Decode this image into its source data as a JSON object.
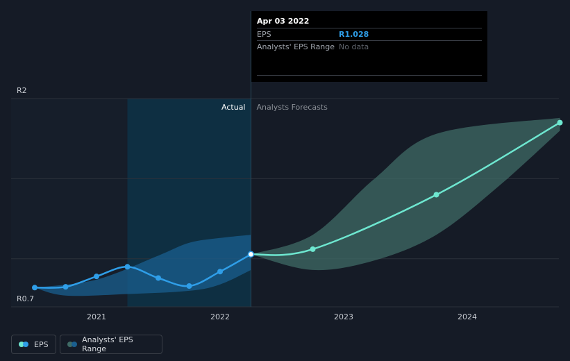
{
  "chart_data": {
    "type": "line",
    "currency": "R",
    "y_axis": {
      "min": 0.7,
      "max": 2,
      "top_label": "R2",
      "bottom_label": "R0.7"
    },
    "x_ticks": [
      "2021",
      "2022",
      "2023",
      "2024"
    ],
    "x_tick_values": [
      2021,
      2022,
      2023,
      2024
    ],
    "region_labels": {
      "actual": "Actual",
      "forecast": "Analysts Forecasts"
    },
    "series": [
      {
        "name": "EPS",
        "points": [
          {
            "x": 2020.5,
            "y": 0.82
          },
          {
            "x": 2020.75,
            "y": 0.825
          },
          {
            "x": 2021.0,
            "y": 0.89
          },
          {
            "x": 2021.25,
            "y": 0.95
          },
          {
            "x": 2021.5,
            "y": 0.88
          },
          {
            "x": 2021.75,
            "y": 0.83
          },
          {
            "x": 2022.0,
            "y": 0.92
          },
          {
            "x": 2022.25,
            "y": 1.028
          }
        ]
      },
      {
        "name": "EPS forecast",
        "points": [
          {
            "x": 2022.25,
            "y": 1.028
          },
          {
            "x": 2022.75,
            "y": 1.06
          },
          {
            "x": 2023.75,
            "y": 1.4
          },
          {
            "x": 2024.75,
            "y": 1.85
          }
        ]
      }
    ],
    "actual_range_band": {
      "upper": [
        {
          "x": 2020.5,
          "y": 0.82
        },
        {
          "x": 2021.0,
          "y": 0.87
        },
        {
          "x": 2021.5,
          "y": 1.02
        },
        {
          "x": 2021.75,
          "y": 1.1
        },
        {
          "x": 2022.0,
          "y": 1.13
        },
        {
          "x": 2022.25,
          "y": 1.15
        }
      ],
      "lower": [
        {
          "x": 2020.5,
          "y": 0.82
        },
        {
          "x": 2020.75,
          "y": 0.77
        },
        {
          "x": 2021.25,
          "y": 0.78
        },
        {
          "x": 2021.75,
          "y": 0.8
        },
        {
          "x": 2022.0,
          "y": 0.84
        },
        {
          "x": 2022.25,
          "y": 0.93
        }
      ]
    },
    "forecast_range_band": {
      "upper": [
        {
          "x": 2022.25,
          "y": 1.028
        },
        {
          "x": 2022.75,
          "y": 1.15
        },
        {
          "x": 2023.25,
          "y": 1.5
        },
        {
          "x": 2023.75,
          "y": 1.78
        },
        {
          "x": 2024.75,
          "y": 1.88
        }
      ],
      "lower": [
        {
          "x": 2022.25,
          "y": 1.028
        },
        {
          "x": 2022.75,
          "y": 0.93
        },
        {
          "x": 2023.25,
          "y": 0.99
        },
        {
          "x": 2023.75,
          "y": 1.15
        },
        {
          "x": 2024.25,
          "y": 1.45
        },
        {
          "x": 2024.75,
          "y": 1.8
        }
      ]
    },
    "highlight_start": 2021.25,
    "current_x": 2022.25,
    "colors": {
      "eps": "#2f9ee8",
      "forecast": "#6ee7d0",
      "actual_band": "#1a5f8f",
      "forecast_band": "#3f6b66",
      "highlight": "#0d3347",
      "grid": "#2c323b",
      "axis_text": "#c8ccd2"
    }
  },
  "tooltip": {
    "date": "Apr 03 2022",
    "eps_label": "EPS",
    "eps_value": "R1.028",
    "range_label": "Analysts' EPS Range",
    "range_value": "No data"
  },
  "legend": {
    "eps_label": "EPS",
    "range_label": "Analysts' EPS Range"
  }
}
